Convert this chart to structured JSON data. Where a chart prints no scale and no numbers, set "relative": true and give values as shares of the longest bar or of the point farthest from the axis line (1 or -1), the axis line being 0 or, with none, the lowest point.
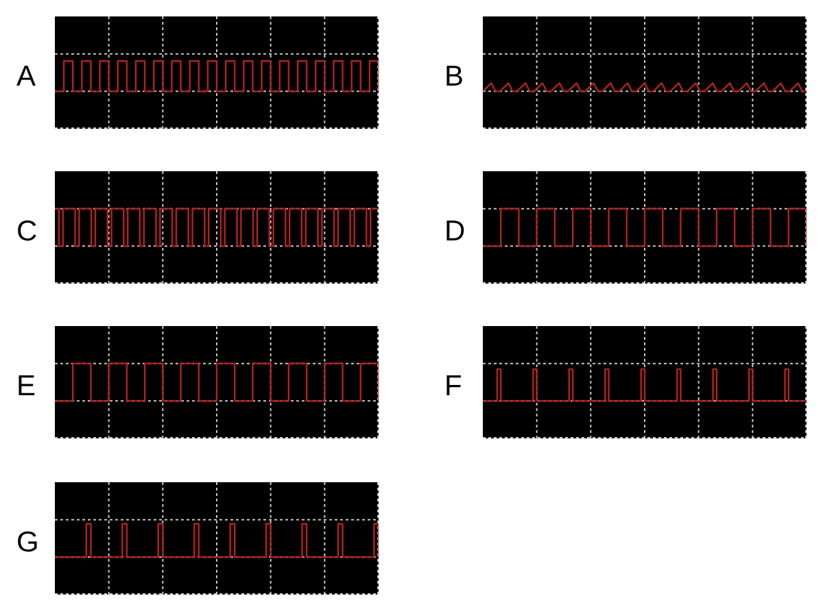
{
  "chart_data": [
    {
      "type": "step",
      "title": "A",
      "relative": true,
      "grid": true,
      "tick_labels": false,
      "color": "#b22222",
      "categories": [
        null,
        null,
        null,
        null,
        null,
        null,
        null,
        null,
        null,
        null,
        null,
        null,
        null,
        null,
        null,
        null,
        null,
        null,
        null,
        null,
        null,
        null,
        null,
        null,
        null,
        null,
        null,
        null,
        null,
        null,
        null,
        null,
        null,
        null,
        null,
        null,
        null,
        null,
        null,
        null,
        null,
        null,
        null,
        null,
        null,
        null,
        null,
        null,
        null,
        null,
        null,
        null,
        null,
        null,
        null,
        null,
        null,
        null,
        null,
        null,
        null,
        null,
        null,
        null,
        null,
        null,
        null,
        null,
        null,
        null,
        null,
        null,
        null
      ],
      "values": [
        0,
        0,
        1,
        1,
        0,
        0,
        1,
        1,
        0,
        0,
        1,
        1,
        0,
        0,
        1,
        1,
        0,
        0,
        1,
        1,
        0,
        0,
        1,
        1,
        0,
        0,
        1,
        1,
        0,
        0,
        1,
        1,
        0,
        0,
        1,
        1,
        0,
        0,
        1,
        1,
        0,
        0,
        1,
        1,
        0,
        0,
        1,
        1,
        0,
        0,
        1,
        1,
        0,
        0,
        1,
        1,
        0,
        0,
        1,
        1,
        0,
        0,
        1,
        1,
        0,
        0,
        1,
        1,
        0,
        0,
        1,
        1,
        0
      ]
    },
    {
      "type": "line",
      "title": "B",
      "relative": true,
      "grid": true,
      "tick_labels": false,
      "color": "#b22222",
      "categories": [
        null,
        null,
        null,
        null,
        null,
        null,
        null,
        null,
        null,
        null,
        null,
        null,
        null,
        null,
        null,
        null,
        null,
        null,
        null,
        null,
        null,
        null,
        null,
        null,
        null,
        null,
        null,
        null,
        null,
        null,
        null,
        null,
        null,
        null,
        null,
        null,
        null,
        null,
        null,
        null,
        null,
        null,
        null,
        null,
        null,
        null,
        null,
        null,
        null,
        null,
        null,
        null,
        null,
        null,
        null,
        null,
        null,
        null,
        null,
        null,
        null,
        null,
        null,
        null,
        null,
        null,
        null,
        null,
        null,
        null,
        null,
        null,
        null,
        null,
        null,
        null,
        null
      ],
      "values": [
        0,
        0.5,
        1,
        0,
        0,
        0.5,
        1,
        0,
        0,
        0.5,
        1,
        0,
        0,
        0.5,
        1,
        0,
        0,
        0.5,
        1,
        0,
        0,
        0.5,
        1,
        0,
        0,
        0.5,
        1,
        0,
        0,
        0.5,
        1,
        0,
        0,
        0.5,
        1,
        0,
        0,
        0.5,
        1,
        0,
        0,
        0.5,
        1,
        0,
        0,
        0.5,
        1,
        0,
        0,
        0.5,
        1,
        0,
        0,
        0.5,
        1,
        0,
        0,
        0.5,
        1,
        0,
        0,
        0.5,
        1,
        0,
        0,
        0.5,
        1,
        0,
        0,
        0.5,
        1,
        0,
        0,
        0.5,
        1,
        0,
        0
      ]
    },
    {
      "type": "step",
      "title": "C",
      "relative": true,
      "grid": true,
      "tick_labels": false,
      "color": "#b22222",
      "categories": [
        null,
        null,
        null,
        null,
        null,
        null,
        null,
        null,
        null,
        null,
        null,
        null,
        null,
        null,
        null,
        null,
        null,
        null,
        null,
        null,
        null,
        null,
        null,
        null,
        null,
        null,
        null,
        null,
        null,
        null,
        null,
        null,
        null,
        null,
        null,
        null,
        null,
        null,
        null,
        null,
        null,
        null,
        null,
        null,
        null,
        null,
        null,
        null,
        null,
        null,
        null,
        null,
        null,
        null,
        null,
        null,
        null,
        null,
        null,
        null,
        null,
        null,
        null,
        null,
        null,
        null,
        null,
        null,
        null,
        null,
        null,
        null,
        null,
        null,
        null,
        null,
        null,
        null,
        null,
        null,
        null
      ],
      "values": [
        1,
        0,
        1,
        1,
        1,
        0,
        1,
        1,
        1,
        0,
        1,
        1,
        1,
        0,
        1,
        1,
        1,
        0,
        1,
        1,
        1,
        0,
        1,
        1,
        1,
        0,
        1,
        1,
        1,
        0,
        1,
        1,
        1,
        0,
        1,
        1,
        1,
        0,
        1,
        1,
        1,
        0,
        1,
        1,
        1,
        0,
        1,
        1,
        1,
        0,
        1,
        1,
        1,
        0,
        1,
        1,
        1,
        0,
        1,
        1,
        1,
        0,
        1,
        1,
        1,
        0,
        1,
        1,
        1,
        0,
        1,
        1,
        1,
        0,
        1,
        1,
        1,
        0,
        1,
        1,
        1
      ]
    },
    {
      "type": "step",
      "title": "D",
      "relative": true,
      "grid": true,
      "tick_labels": false,
      "color": "#b22222",
      "categories": [
        null,
        null,
        null,
        null,
        null,
        null,
        null,
        null,
        null,
        null,
        null,
        null,
        null,
        null,
        null,
        null,
        null,
        null,
        null
      ],
      "values": [
        0,
        1,
        0,
        1,
        0,
        1,
        0,
        1,
        0,
        1,
        0,
        1,
        0,
        1,
        0,
        1,
        0,
        1,
        0
      ]
    },
    {
      "type": "step",
      "title": "E",
      "relative": true,
      "grid": true,
      "tick_labels": false,
      "color": "#b22222",
      "categories": [
        null,
        null,
        null,
        null,
        null,
        null,
        null,
        null,
        null,
        null,
        null,
        null,
        null,
        null,
        null,
        null,
        null,
        null,
        null
      ],
      "values": [
        0,
        1,
        0,
        1,
        0,
        1,
        0,
        1,
        0,
        1,
        0,
        1,
        0,
        1,
        0,
        1,
        0,
        1,
        0
      ]
    },
    {
      "type": "step",
      "title": "F",
      "relative": true,
      "grid": true,
      "tick_labels": false,
      "color": "#b22222",
      "categories": [
        null,
        null,
        null,
        null,
        null,
        null,
        null,
        null,
        null,
        null,
        null,
        null,
        null,
        null,
        null,
        null,
        null,
        null,
        null,
        null,
        null,
        null,
        null,
        null,
        null,
        null,
        null,
        null,
        null,
        null,
        null,
        null,
        null,
        null,
        null,
        null,
        null,
        null,
        null,
        null,
        null,
        null,
        null,
        null,
        null,
        null,
        null,
        null,
        null,
        null,
        null,
        null,
        null,
        null,
        null,
        null,
        null,
        null,
        null,
        null,
        null,
        null,
        null,
        null,
        null,
        null,
        null,
        null,
        null,
        null,
        null,
        null,
        null,
        null,
        null,
        null,
        null,
        null,
        null,
        null,
        null,
        null,
        null,
        null,
        null,
        null,
        null,
        null,
        null,
        null,
        null
      ],
      "values": [
        0,
        0,
        0,
        0,
        1,
        0,
        0,
        0,
        0,
        0,
        0,
        0,
        0,
        0,
        1,
        0,
        0,
        0,
        0,
        0,
        0,
        0,
        0,
        0,
        1,
        0,
        0,
        0,
        0,
        0,
        0,
        0,
        0,
        0,
        1,
        0,
        0,
        0,
        0,
        0,
        0,
        0,
        0,
        0,
        1,
        0,
        0,
        0,
        0,
        0,
        0,
        0,
        0,
        0,
        1,
        0,
        0,
        0,
        0,
        0,
        0,
        0,
        0,
        0,
        1,
        0,
        0,
        0,
        0,
        0,
        0,
        0,
        0,
        0,
        1,
        0,
        0,
        0,
        0,
        0,
        0,
        0,
        0,
        0,
        1,
        0,
        0,
        0,
        0,
        0,
        0
      ]
    },
    {
      "type": "step",
      "title": "G",
      "relative": true,
      "grid": true,
      "tick_labels": false,
      "color": "#b22222",
      "categories": [
        null,
        null,
        null,
        null,
        null,
        null,
        null,
        null,
        null,
        null,
        null,
        null,
        null,
        null,
        null,
        null,
        null,
        null,
        null,
        null,
        null,
        null,
        null,
        null,
        null,
        null,
        null,
        null,
        null,
        null,
        null,
        null,
        null,
        null,
        null,
        null,
        null,
        null,
        null,
        null,
        null,
        null,
        null,
        null,
        null,
        null,
        null,
        null,
        null,
        null,
        null,
        null,
        null,
        null,
        null,
        null,
        null,
        null,
        null,
        null,
        null,
        null,
        null,
        null,
        null,
        null,
        null,
        null,
        null,
        null,
        null,
        null,
        null
      ],
      "values": [
        0,
        0,
        0,
        0,
        0,
        0,
        0,
        1,
        0,
        0,
        0,
        0,
        0,
        0,
        0,
        1,
        0,
        0,
        0,
        0,
        0,
        0,
        0,
        1,
        0,
        0,
        0,
        0,
        0,
        0,
        0,
        1,
        0,
        0,
        0,
        0,
        0,
        0,
        0,
        1,
        0,
        0,
        0,
        0,
        0,
        0,
        0,
        1,
        0,
        0,
        0,
        0,
        0,
        0,
        0,
        1,
        0,
        0,
        0,
        0,
        0,
        0,
        0,
        1,
        0,
        0,
        0,
        0,
        0,
        0,
        0,
        1,
        0
      ]
    }
  ]
}
